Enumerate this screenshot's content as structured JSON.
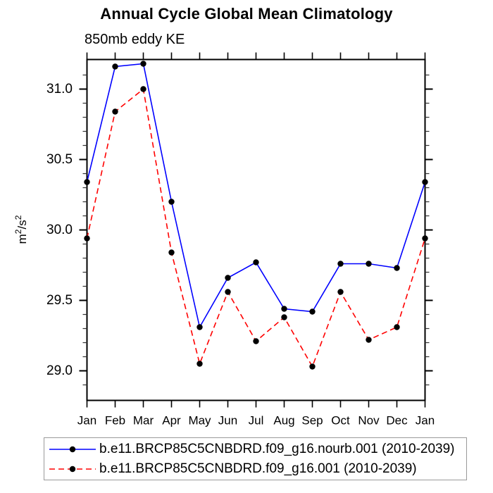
{
  "chart_data": {
    "type": "line",
    "title": "Annual Cycle Global Mean Climatology",
    "subtitle": "850mb eddy KE",
    "xlabel": "",
    "ylabel": "m²/s²",
    "categories": [
      "Jan",
      "Feb",
      "Mar",
      "Apr",
      "May",
      "Jun",
      "Jul",
      "Aug",
      "Sep",
      "Oct",
      "Nov",
      "Dec",
      "Jan"
    ],
    "ylim": [
      28.79,
      31.21
    ],
    "yticks": [
      29.0,
      29.5,
      30.0,
      30.5,
      31.0
    ],
    "ytick_labels": [
      "29.0",
      "29.5",
      "30.0",
      "30.5",
      "31.0"
    ],
    "minor_tick_interval": 0.1,
    "grid": false,
    "legend_position": "bottom-box",
    "axis_color": "#000000",
    "marker_color": "#000000",
    "series": [
      {
        "name": "b.e11.BRCP85C5CNBDRD.f09_g16.nourb.001 (2010-2039)",
        "color": "#0000ff",
        "line_style": "solid",
        "marker": "filled-circle",
        "values": [
          30.34,
          31.16,
          31.18,
          30.2,
          29.31,
          29.66,
          29.77,
          29.44,
          29.42,
          29.76,
          29.76,
          29.73,
          30.34
        ]
      },
      {
        "name": "b.e11.BRCP85C5CNBDRD.f09_g16.001 (2010-2039)",
        "color": "#ff0000",
        "line_style": "dashed",
        "marker": "filled-circle",
        "values": [
          29.94,
          30.84,
          31.0,
          29.84,
          29.05,
          29.56,
          29.21,
          29.38,
          29.03,
          29.56,
          29.22,
          29.31,
          29.94
        ]
      }
    ]
  }
}
